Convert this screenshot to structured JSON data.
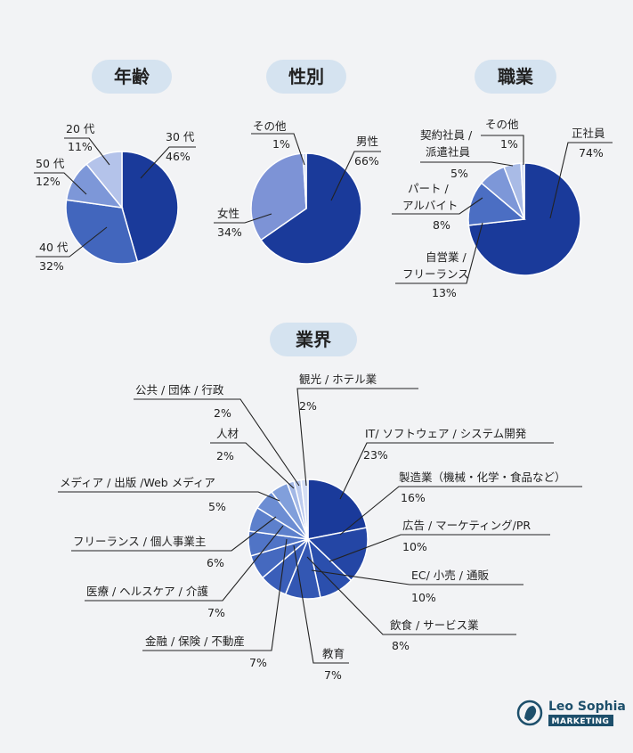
{
  "chart_data": [
    {
      "type": "pie",
      "title": "年齢",
      "slices": [
        {
          "label": "30 代",
          "value": 46,
          "value_label": "46%",
          "color": "#1a3a9a"
        },
        {
          "label": "40 代",
          "value": 32,
          "value_label": "32%",
          "color": "#4266bd"
        },
        {
          "label": "50 代",
          "value": 12,
          "value_label": "12%",
          "color": "#7d97d8"
        },
        {
          "label": "20 代",
          "value": 11,
          "value_label": "11%",
          "color": "#b4c3ea"
        }
      ]
    },
    {
      "type": "pie",
      "title": "性別",
      "slices": [
        {
          "label": "男性",
          "value": 66,
          "value_label": "66%",
          "color": "#1a3a9a"
        },
        {
          "label": "女性",
          "value": 34,
          "value_label": "34%",
          "color": "#7d93d6"
        },
        {
          "label": "その他",
          "value": 1,
          "value_label": "1%",
          "color": "#d0dbf2"
        }
      ]
    },
    {
      "type": "pie",
      "title": "職業",
      "slices": [
        {
          "label": "正社員",
          "value": 74,
          "value_label": "74%",
          "color": "#1a3a9a"
        },
        {
          "label": "自営業 / フリーランス",
          "value": 13,
          "value_label": "13%",
          "color": "#4b6ec3"
        },
        {
          "label": "パート / アルバイト",
          "value": 8,
          "value_label": "8%",
          "color": "#7d97d8"
        },
        {
          "label": "契約社員 / 派遣社員",
          "value": 5,
          "value_label": "5%",
          "color": "#a9bbe6"
        },
        {
          "label": "その他",
          "value": 1,
          "value_label": "1%",
          "color": "#d0dbf2"
        }
      ]
    },
    {
      "type": "pie",
      "title": "業界",
      "slices": [
        {
          "label": "IT/ ソフトウェア / システム開発",
          "value": 23,
          "value_label": "23%",
          "color": "#1a3a9a"
        },
        {
          "label": "製造業（機械・化学・食品など）",
          "value": 16,
          "value_label": "16%",
          "color": "#2446a5"
        },
        {
          "label": "広告 / マーケティング/PR",
          "value": 10,
          "value_label": "10%",
          "color": "#2b4fad"
        },
        {
          "label": "EC/ 小売 / 通販",
          "value": 10,
          "value_label": "10%",
          "color": "#3357b3"
        },
        {
          "label": "飲食 / サービス業",
          "value": 8,
          "value_label": "8%",
          "color": "#3a5eb9"
        },
        {
          "label": "教育",
          "value": 7,
          "value_label": "7%",
          "color": "#4569bf"
        },
        {
          "label": "金融 / 保険 / 不動産",
          "value": 7,
          "value_label": "7%",
          "color": "#5074c6"
        },
        {
          "label": "医療 / ヘルスケア / 介護",
          "value": 7,
          "value_label": "7%",
          "color": "#5d80cc"
        },
        {
          "label": "フリーランス / 個人事業主",
          "value": 6,
          "value_label": "6%",
          "color": "#6c8dd3"
        },
        {
          "label": "メディア / 出版 /Web メディア",
          "value": 5,
          "value_label": "5%",
          "color": "#819fdb"
        },
        {
          "label": "人材",
          "value": 2,
          "value_label": "2%",
          "color": "#a3b8e6"
        },
        {
          "label": "公共 / 団体 / 行政",
          "value": 2,
          "value_label": "2%",
          "color": "#bccbee"
        },
        {
          "label": "観光 / ホテル業",
          "value": 2,
          "value_label": "2%",
          "color": "#d4def4"
        }
      ]
    }
  ],
  "brand": {
    "name": "Leo Sophia",
    "tag": "MARKETING",
    "logo_icon": "lion-head-icon",
    "color": "#1d4f6b"
  }
}
